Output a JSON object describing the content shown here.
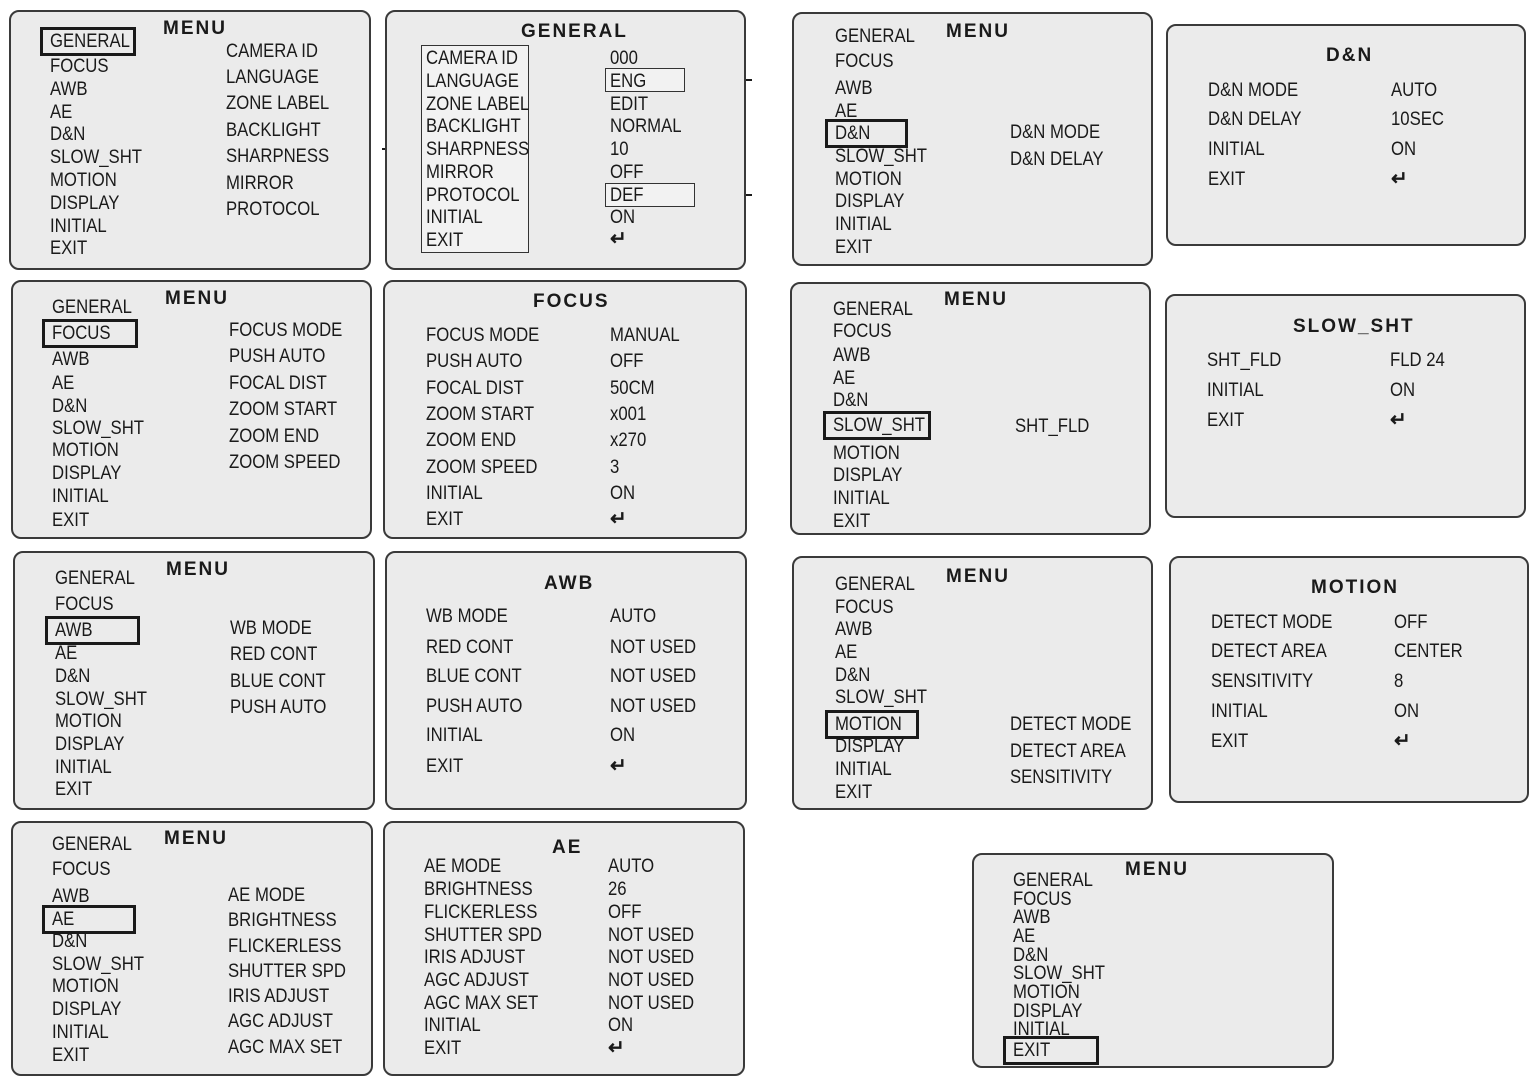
{
  "menu_title": "MENU",
  "menu_items": [
    "GENERAL",
    "FOCUS",
    "AWB",
    "AE",
    "D&N",
    "SLOW_SHT",
    "MOTION",
    "DISPLAY",
    "INITIAL",
    "EXIT"
  ],
  "return_symbol": "↵",
  "general": {
    "submenu": [
      "CAMERA ID",
      "LANGUAGE",
      "ZONE LABEL",
      "BACKLIGHT",
      "SHARPNESS",
      "MIRROR",
      "PROTOCOL"
    ],
    "title": "GENERAL",
    "labels": [
      "CAMERA ID",
      "LANGUAGE",
      "ZONE LABEL",
      "BACKLIGHT",
      "SHARPNESS",
      "MIRROR",
      "PROTOCOL",
      "INITIAL",
      "EXIT"
    ],
    "values": [
      "000",
      "ENG",
      "EDIT",
      "NORMAL",
      "10",
      "OFF",
      "DEF",
      "ON"
    ]
  },
  "focus": {
    "submenu": [
      "FOCUS MODE",
      "PUSH AUTO",
      "FOCAL DIST",
      "ZOOM START",
      "ZOOM END",
      "ZOOM SPEED"
    ],
    "title": "FOCUS",
    "labels": [
      "FOCUS MODE",
      "PUSH AUTO",
      "FOCAL DIST",
      "ZOOM START",
      "ZOOM END",
      "ZOOM SPEED",
      "INITIAL",
      "EXIT"
    ],
    "values": [
      "MANUAL",
      "OFF",
      "50CM",
      "x001",
      "x270",
      "3",
      "ON"
    ]
  },
  "awb": {
    "submenu": [
      "WB MODE",
      "RED CONT",
      "BLUE CONT",
      "PUSH AUTO"
    ],
    "title": "AWB",
    "labels": [
      "WB MODE",
      "RED CONT",
      "BLUE CONT",
      "PUSH AUTO",
      "INITIAL",
      "EXIT"
    ],
    "values": [
      "AUTO",
      "NOT USED",
      "NOT USED",
      "NOT USED",
      "ON"
    ]
  },
  "ae": {
    "submenu": [
      "AE MODE",
      "BRIGHTNESS",
      "FLICKERLESS",
      "SHUTTER SPD",
      "IRIS ADJUST",
      "AGC ADJUST",
      "AGC MAX SET"
    ],
    "title": "AE",
    "labels": [
      "AE MODE",
      "BRIGHTNESS",
      "FLICKERLESS",
      "SHUTTER SPD",
      "IRIS ADJUST",
      "AGC ADJUST",
      "AGC MAX SET",
      "INITIAL",
      "EXIT"
    ],
    "values": [
      "AUTO",
      "26",
      "OFF",
      "NOT USED",
      "NOT USED",
      "NOT USED",
      "NOT USED",
      "ON"
    ]
  },
  "dn": {
    "submenu": [
      "D&N MODE",
      "D&N DELAY"
    ],
    "title": "D&N",
    "labels": [
      "D&N MODE",
      "D&N DELAY",
      "INITIAL",
      "EXIT"
    ],
    "values": [
      "AUTO",
      "10SEC",
      "ON"
    ]
  },
  "slowsht": {
    "submenu": [
      "SHT_FLD"
    ],
    "title": "SLOW_SHT",
    "labels": [
      "SHT_FLD",
      "INITIAL",
      "EXIT"
    ],
    "values": [
      "FLD 24",
      "ON"
    ]
  },
  "motion": {
    "submenu": [
      "DETECT MODE",
      "DETECT AREA",
      "SENSITIVITY"
    ],
    "title": "MOTION",
    "labels": [
      "DETECT MODE",
      "DETECT AREA",
      "SENSITIVITY",
      "INITIAL",
      "EXIT"
    ],
    "values": [
      "OFF",
      "CENTER",
      "8",
      "ON"
    ]
  }
}
